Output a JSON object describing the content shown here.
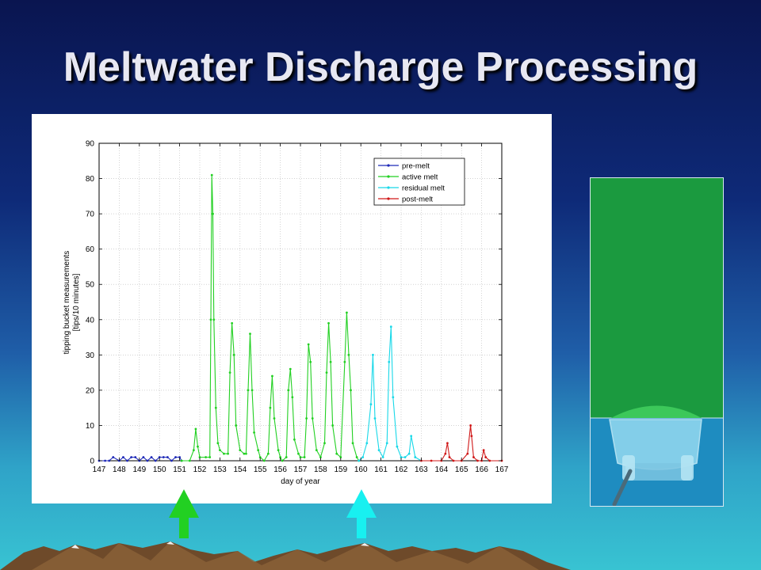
{
  "slide": {
    "title": "Meltwater Discharge Processing"
  },
  "colors": {
    "pre_melt": "#1f2ab8",
    "active_melt": "#22d022",
    "residual_melt": "#18d8e8",
    "post_melt": "#d01818",
    "arrow_active": "#22d022",
    "arrow_residual": "#18f0f0",
    "panel_green": "#1b9a3f",
    "panel_water": "#1e8cc0"
  },
  "chart_data": {
    "type": "line",
    "xlabel": "day of year",
    "ylabel": "tipping bucket measurements",
    "ylabel_units": "[tips/10 minutes]",
    "xlim": [
      147,
      167
    ],
    "ylim": [
      0,
      90
    ],
    "xticks": [
      "147",
      "148",
      "149",
      "150",
      "151",
      "152",
      "153",
      "154",
      "155",
      "156",
      "157",
      "158",
      "159",
      "160",
      "161",
      "162",
      "163",
      "164",
      "165",
      "166",
      "167"
    ],
    "yticks": [
      "0",
      "10",
      "20",
      "30",
      "40",
      "50",
      "60",
      "70",
      "80",
      "90"
    ],
    "grid": true,
    "legend_position": "top-right",
    "legend": [
      "pre-melt",
      "active melt",
      "residual melt",
      "post-melt"
    ],
    "series": [
      {
        "name": "pre-melt",
        "color": "#1f2ab8",
        "x": [
          147.0,
          147.3,
          147.5,
          147.7,
          148.0,
          148.2,
          148.4,
          148.6,
          148.8,
          149.0,
          149.2,
          149.4,
          149.6,
          149.8,
          150.0,
          150.2,
          150.4,
          150.6,
          150.8,
          151.0,
          151.1
        ],
        "y": [
          0,
          0,
          0,
          1,
          0,
          1,
          0,
          1,
          1,
          0,
          1,
          0,
          1,
          0,
          1,
          1,
          1,
          0,
          1,
          1,
          0
        ]
      },
      {
        "name": "active melt",
        "color": "#22d022",
        "x": [
          151.1,
          151.5,
          151.7,
          151.8,
          151.9,
          152.0,
          152.3,
          152.5,
          152.55,
          152.6,
          152.65,
          152.7,
          152.8,
          152.9,
          153.0,
          153.2,
          153.4,
          153.5,
          153.6,
          153.7,
          153.8,
          154.0,
          154.2,
          154.3,
          154.4,
          154.5,
          154.6,
          154.7,
          154.9,
          155.0,
          155.2,
          155.4,
          155.5,
          155.6,
          155.7,
          155.9,
          156.0,
          156.1,
          156.3,
          156.4,
          156.5,
          156.6,
          156.7,
          156.9,
          157.0,
          157.2,
          157.3,
          157.4,
          157.5,
          157.6,
          157.8,
          158.0,
          158.2,
          158.3,
          158.4,
          158.5,
          158.6,
          158.8,
          159.0,
          159.2,
          159.3,
          159.4,
          159.5,
          159.6,
          159.8,
          159.9
        ],
        "y": [
          0,
          0,
          3,
          9,
          4,
          1,
          1,
          1,
          40,
          81,
          70,
          40,
          15,
          5,
          3,
          2,
          2,
          25,
          39,
          30,
          10,
          3,
          2,
          2,
          20,
          36,
          20,
          8,
          3,
          1,
          0,
          2,
          15,
          24,
          12,
          3,
          1,
          0,
          1,
          20,
          26,
          18,
          6,
          2,
          1,
          1,
          12,
          33,
          28,
          12,
          3,
          1,
          5,
          25,
          39,
          28,
          10,
          2,
          1,
          28,
          42,
          30,
          20,
          5,
          1,
          0
        ]
      },
      {
        "name": "residual melt",
        "color": "#18d8e8",
        "x": [
          159.9,
          160.1,
          160.3,
          160.5,
          160.6,
          160.7,
          160.9,
          161.1,
          161.3,
          161.4,
          161.5,
          161.6,
          161.8,
          162.0,
          162.2,
          162.4,
          162.5,
          162.7,
          163.0
        ],
        "y": [
          0,
          1,
          5,
          16,
          30,
          12,
          3,
          1,
          5,
          28,
          38,
          18,
          4,
          1,
          1,
          2,
          7,
          1,
          0
        ]
      },
      {
        "name": "post-melt",
        "color": "#d01818",
        "x": [
          163.0,
          163.5,
          164.0,
          164.2,
          164.3,
          164.4,
          164.6,
          165.0,
          165.3,
          165.45,
          165.5,
          165.6,
          165.8,
          166.0,
          166.1,
          166.2,
          166.4,
          167.0
        ],
        "y": [
          0,
          0,
          0,
          2,
          5,
          1,
          0,
          0,
          2,
          10,
          7,
          1,
          0,
          0,
          3,
          1,
          0,
          0
        ]
      }
    ]
  }
}
